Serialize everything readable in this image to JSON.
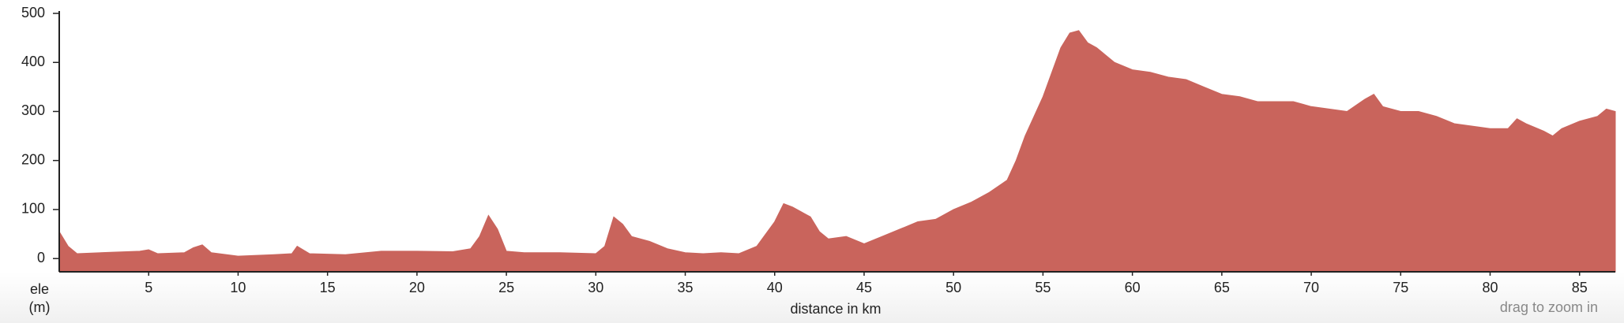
{
  "chart_data": {
    "type": "area",
    "xlabel": "distance in km",
    "ylabel": [
      "ele",
      "(m)"
    ],
    "hint": "drag to zoom in",
    "color": "#c9645c",
    "x": [
      0,
      0.5,
      1,
      3,
      4.5,
      5,
      5.5,
      7,
      7.5,
      8,
      8.5,
      10,
      12,
      13,
      13.3,
      14,
      16,
      18,
      20,
      22,
      23,
      23.5,
      24,
      24.5,
      25,
      26,
      28,
      30,
      30.5,
      31,
      31.5,
      32,
      33,
      34,
      35,
      36,
      37,
      38,
      39,
      40,
      40.5,
      41,
      42,
      42.5,
      43,
      44,
      45,
      46,
      47,
      48,
      49,
      50,
      51,
      52,
      53,
      53.5,
      54,
      54.5,
      55,
      55.5,
      56,
      56.5,
      57,
      57.5,
      58,
      59,
      60,
      61,
      62,
      63,
      64,
      65,
      66,
      67,
      68,
      69,
      70,
      71,
      72,
      73,
      73.5,
      74,
      75,
      76,
      77,
      78,
      79,
      80,
      81,
      81.5,
      82,
      83,
      83.5,
      84,
      85,
      86,
      86.5,
      87
    ],
    "values": [
      55,
      25,
      10,
      13,
      15,
      18,
      10,
      12,
      22,
      28,
      12,
      5,
      8,
      10,
      25,
      10,
      8,
      15,
      15,
      14,
      20,
      45,
      88,
      60,
      15,
      12,
      12,
      10,
      25,
      85,
      70,
      45,
      35,
      20,
      12,
      10,
      12,
      10,
      25,
      75,
      112,
      105,
      85,
      55,
      40,
      45,
      30,
      45,
      60,
      75,
      80,
      100,
      115,
      135,
      160,
      200,
      250,
      290,
      330,
      380,
      430,
      460,
      465,
      440,
      430,
      400,
      385,
      380,
      370,
      365,
      350,
      335,
      330,
      320,
      320,
      320,
      310,
      305,
      300,
      325,
      335,
      310,
      300,
      300,
      290,
      275,
      270,
      265,
      265,
      285,
      275,
      260,
      250,
      265,
      280,
      290,
      305,
      300
    ],
    "xlim": [
      0,
      87
    ],
    "ylim": [
      -27,
      500
    ],
    "xticks": [
      5,
      10,
      15,
      20,
      25,
      30,
      35,
      40,
      45,
      50,
      55,
      60,
      65,
      70,
      75,
      80,
      85
    ],
    "yticks": [
      0,
      100,
      200,
      300,
      400,
      500
    ]
  }
}
